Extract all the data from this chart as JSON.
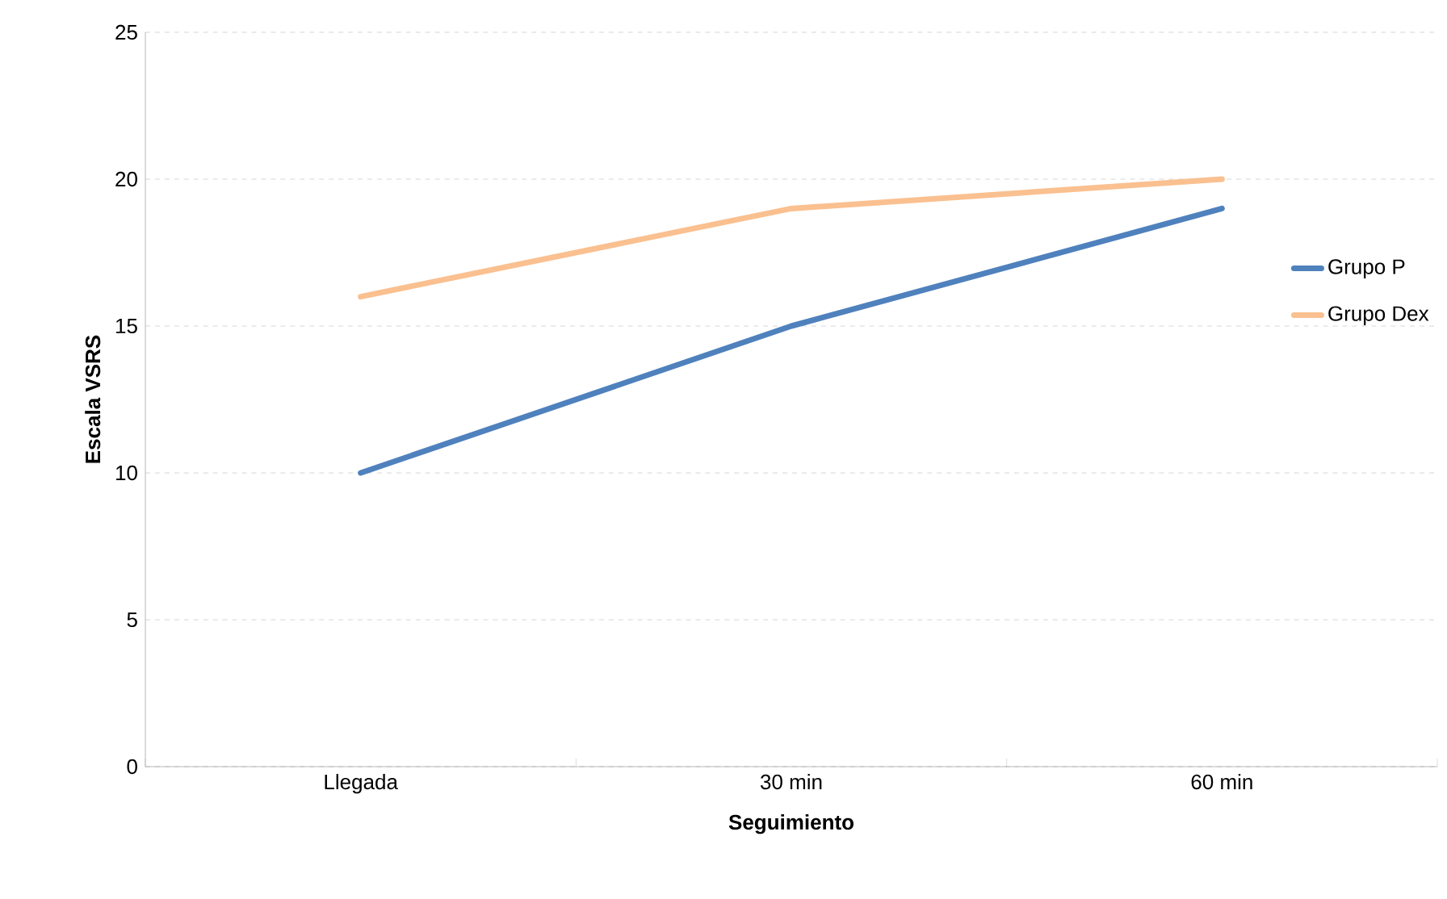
{
  "chart_data": {
    "type": "line",
    "xlabel": "Seguimiento",
    "ylabel": "Escala VSRS",
    "categories": [
      "Llegada",
      "30 min",
      "60 min"
    ],
    "series": [
      {
        "name": "Grupo P",
        "color": "#4f81bd",
        "values": [
          10,
          15,
          19
        ]
      },
      {
        "name": "Grupo Dex",
        "color": "#fac090",
        "values": [
          16,
          19,
          20
        ]
      }
    ],
    "ylim": [
      0,
      25
    ],
    "yticks": [
      0,
      5,
      10,
      15,
      20,
      25
    ],
    "grid": "y",
    "legend": "right"
  }
}
